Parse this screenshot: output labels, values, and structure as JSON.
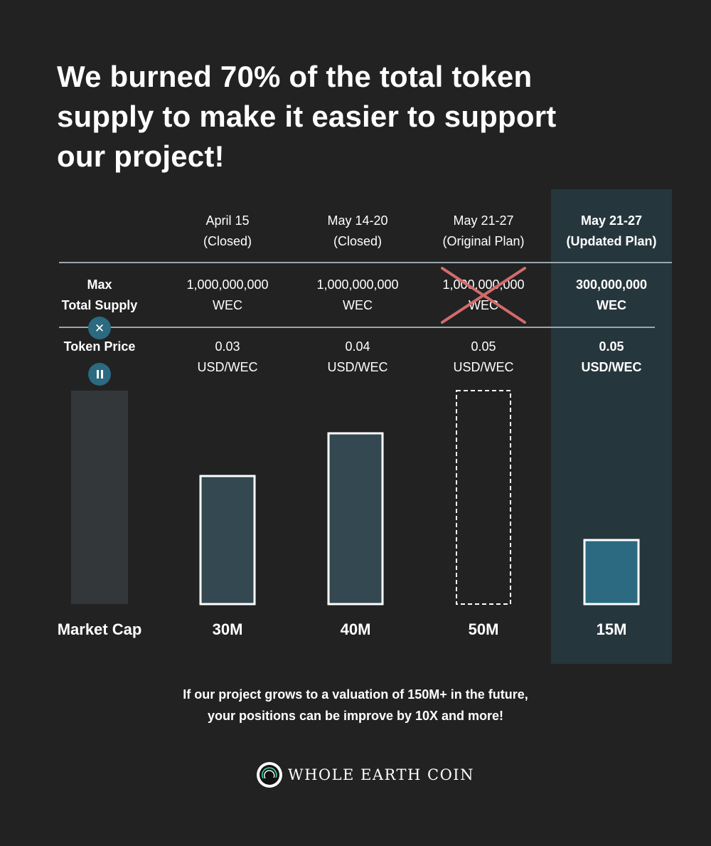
{
  "headline": {
    "line1": "We burned 70% of the total token",
    "line2": "supply to make it easier to support",
    "line3": "our project!"
  },
  "colors": {
    "background": "#222222",
    "highlight_panel": "#26363d",
    "bar_fill": "#334850",
    "bar_fill_highlight": "#2b6a80",
    "reference_bar": "#33373a",
    "strike": "#d36b6b"
  },
  "rows": {
    "max_supply": {
      "label_line1": "Max",
      "label_line2": "Total Supply",
      "icon": "close-icon"
    },
    "token_price": {
      "label": "Token Price",
      "icon": "pause-icon"
    },
    "market_cap": {
      "label": "Market Cap"
    }
  },
  "columns": [
    {
      "date": "April 15",
      "status": "(Closed)",
      "supply": "1,000,000,000",
      "supply_unit": "WEC",
      "price": "0.03",
      "price_unit": "USD/WEC",
      "market_cap_label": "30M",
      "style": "solid"
    },
    {
      "date": "May 14-20",
      "status": "(Closed)",
      "supply": "1,000,000,000",
      "supply_unit": "WEC",
      "price": "0.04",
      "price_unit": "USD/WEC",
      "market_cap_label": "40M",
      "style": "solid"
    },
    {
      "date": "May 21-27",
      "status": "(Original Plan)",
      "supply": "1,000,000,000",
      "supply_unit": "WEC",
      "price": "0.05",
      "price_unit": "USD/WEC",
      "market_cap_label": "50M",
      "style": "dashed",
      "struck_out": true
    },
    {
      "date": "May 21-27",
      "status": "(Updated Plan)",
      "supply": "300,000,000",
      "supply_unit": "WEC",
      "price": "0.05",
      "price_unit": "USD/WEC",
      "market_cap_label": "15M",
      "style": "highlight"
    }
  ],
  "chart_data": {
    "type": "bar",
    "categories": [
      "April 15 (Closed)",
      "May 14-20 (Closed)",
      "May 21-27 (Original Plan)",
      "May 21-27 (Updated Plan)"
    ],
    "values": [
      30,
      40,
      50,
      15
    ],
    "title": "",
    "xlabel": "",
    "ylabel": "Market Cap",
    "ylim": [
      0,
      50
    ],
    "grid": false,
    "legend": "none"
  },
  "footnote": {
    "line1": "If our project grows to a valuation of 150M+ in the future,",
    "line2": "your positions can be improve by 10X and more!"
  },
  "logo": {
    "text": "WHOLE EARTH COIN",
    "icon": "earth-coin-logo-icon"
  }
}
